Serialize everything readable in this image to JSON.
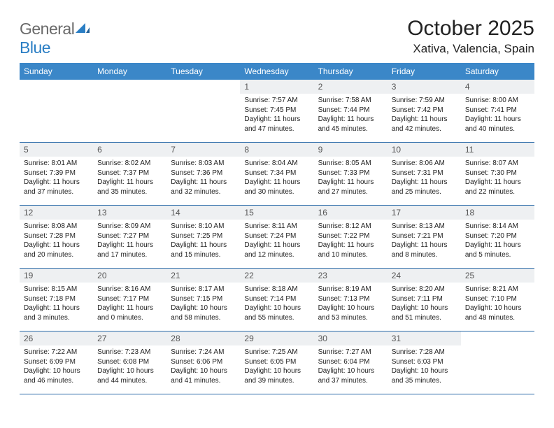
{
  "brand": {
    "text_gray": "General",
    "text_blue": "Blue",
    "mark_color": "#2a7ec4"
  },
  "title": "October 2025",
  "location": "Xativa, Valencia, Spain",
  "weekday_header_bg": "#3b87c8",
  "weekdays": [
    "Sunday",
    "Monday",
    "Tuesday",
    "Wednesday",
    "Thursday",
    "Friday",
    "Saturday"
  ],
  "rows": [
    [
      null,
      null,
      null,
      {
        "num": "1",
        "sunrise": "Sunrise: 7:57 AM",
        "sunset": "Sunset: 7:45 PM",
        "daylight": "Daylight: 11 hours and 47 minutes."
      },
      {
        "num": "2",
        "sunrise": "Sunrise: 7:58 AM",
        "sunset": "Sunset: 7:44 PM",
        "daylight": "Daylight: 11 hours and 45 minutes."
      },
      {
        "num": "3",
        "sunrise": "Sunrise: 7:59 AM",
        "sunset": "Sunset: 7:42 PM",
        "daylight": "Daylight: 11 hours and 42 minutes."
      },
      {
        "num": "4",
        "sunrise": "Sunrise: 8:00 AM",
        "sunset": "Sunset: 7:41 PM",
        "daylight": "Daylight: 11 hours and 40 minutes."
      }
    ],
    [
      {
        "num": "5",
        "sunrise": "Sunrise: 8:01 AM",
        "sunset": "Sunset: 7:39 PM",
        "daylight": "Daylight: 11 hours and 37 minutes."
      },
      {
        "num": "6",
        "sunrise": "Sunrise: 8:02 AM",
        "sunset": "Sunset: 7:37 PM",
        "daylight": "Daylight: 11 hours and 35 minutes."
      },
      {
        "num": "7",
        "sunrise": "Sunrise: 8:03 AM",
        "sunset": "Sunset: 7:36 PM",
        "daylight": "Daylight: 11 hours and 32 minutes."
      },
      {
        "num": "8",
        "sunrise": "Sunrise: 8:04 AM",
        "sunset": "Sunset: 7:34 PM",
        "daylight": "Daylight: 11 hours and 30 minutes."
      },
      {
        "num": "9",
        "sunrise": "Sunrise: 8:05 AM",
        "sunset": "Sunset: 7:33 PM",
        "daylight": "Daylight: 11 hours and 27 minutes."
      },
      {
        "num": "10",
        "sunrise": "Sunrise: 8:06 AM",
        "sunset": "Sunset: 7:31 PM",
        "daylight": "Daylight: 11 hours and 25 minutes."
      },
      {
        "num": "11",
        "sunrise": "Sunrise: 8:07 AM",
        "sunset": "Sunset: 7:30 PM",
        "daylight": "Daylight: 11 hours and 22 minutes."
      }
    ],
    [
      {
        "num": "12",
        "sunrise": "Sunrise: 8:08 AM",
        "sunset": "Sunset: 7:28 PM",
        "daylight": "Daylight: 11 hours and 20 minutes."
      },
      {
        "num": "13",
        "sunrise": "Sunrise: 8:09 AM",
        "sunset": "Sunset: 7:27 PM",
        "daylight": "Daylight: 11 hours and 17 minutes."
      },
      {
        "num": "14",
        "sunrise": "Sunrise: 8:10 AM",
        "sunset": "Sunset: 7:25 PM",
        "daylight": "Daylight: 11 hours and 15 minutes."
      },
      {
        "num": "15",
        "sunrise": "Sunrise: 8:11 AM",
        "sunset": "Sunset: 7:24 PM",
        "daylight": "Daylight: 11 hours and 12 minutes."
      },
      {
        "num": "16",
        "sunrise": "Sunrise: 8:12 AM",
        "sunset": "Sunset: 7:22 PM",
        "daylight": "Daylight: 11 hours and 10 minutes."
      },
      {
        "num": "17",
        "sunrise": "Sunrise: 8:13 AM",
        "sunset": "Sunset: 7:21 PM",
        "daylight": "Daylight: 11 hours and 8 minutes."
      },
      {
        "num": "18",
        "sunrise": "Sunrise: 8:14 AM",
        "sunset": "Sunset: 7:20 PM",
        "daylight": "Daylight: 11 hours and 5 minutes."
      }
    ],
    [
      {
        "num": "19",
        "sunrise": "Sunrise: 8:15 AM",
        "sunset": "Sunset: 7:18 PM",
        "daylight": "Daylight: 11 hours and 3 minutes."
      },
      {
        "num": "20",
        "sunrise": "Sunrise: 8:16 AM",
        "sunset": "Sunset: 7:17 PM",
        "daylight": "Daylight: 11 hours and 0 minutes."
      },
      {
        "num": "21",
        "sunrise": "Sunrise: 8:17 AM",
        "sunset": "Sunset: 7:15 PM",
        "daylight": "Daylight: 10 hours and 58 minutes."
      },
      {
        "num": "22",
        "sunrise": "Sunrise: 8:18 AM",
        "sunset": "Sunset: 7:14 PM",
        "daylight": "Daylight: 10 hours and 55 minutes."
      },
      {
        "num": "23",
        "sunrise": "Sunrise: 8:19 AM",
        "sunset": "Sunset: 7:13 PM",
        "daylight": "Daylight: 10 hours and 53 minutes."
      },
      {
        "num": "24",
        "sunrise": "Sunrise: 8:20 AM",
        "sunset": "Sunset: 7:11 PM",
        "daylight": "Daylight: 10 hours and 51 minutes."
      },
      {
        "num": "25",
        "sunrise": "Sunrise: 8:21 AM",
        "sunset": "Sunset: 7:10 PM",
        "daylight": "Daylight: 10 hours and 48 minutes."
      }
    ],
    [
      {
        "num": "26",
        "sunrise": "Sunrise: 7:22 AM",
        "sunset": "Sunset: 6:09 PM",
        "daylight": "Daylight: 10 hours and 46 minutes."
      },
      {
        "num": "27",
        "sunrise": "Sunrise: 7:23 AM",
        "sunset": "Sunset: 6:08 PM",
        "daylight": "Daylight: 10 hours and 44 minutes."
      },
      {
        "num": "28",
        "sunrise": "Sunrise: 7:24 AM",
        "sunset": "Sunset: 6:06 PM",
        "daylight": "Daylight: 10 hours and 41 minutes."
      },
      {
        "num": "29",
        "sunrise": "Sunrise: 7:25 AM",
        "sunset": "Sunset: 6:05 PM",
        "daylight": "Daylight: 10 hours and 39 minutes."
      },
      {
        "num": "30",
        "sunrise": "Sunrise: 7:27 AM",
        "sunset": "Sunset: 6:04 PM",
        "daylight": "Daylight: 10 hours and 37 minutes."
      },
      {
        "num": "31",
        "sunrise": "Sunrise: 7:28 AM",
        "sunset": "Sunset: 6:03 PM",
        "daylight": "Daylight: 10 hours and 35 minutes."
      },
      null
    ]
  ]
}
